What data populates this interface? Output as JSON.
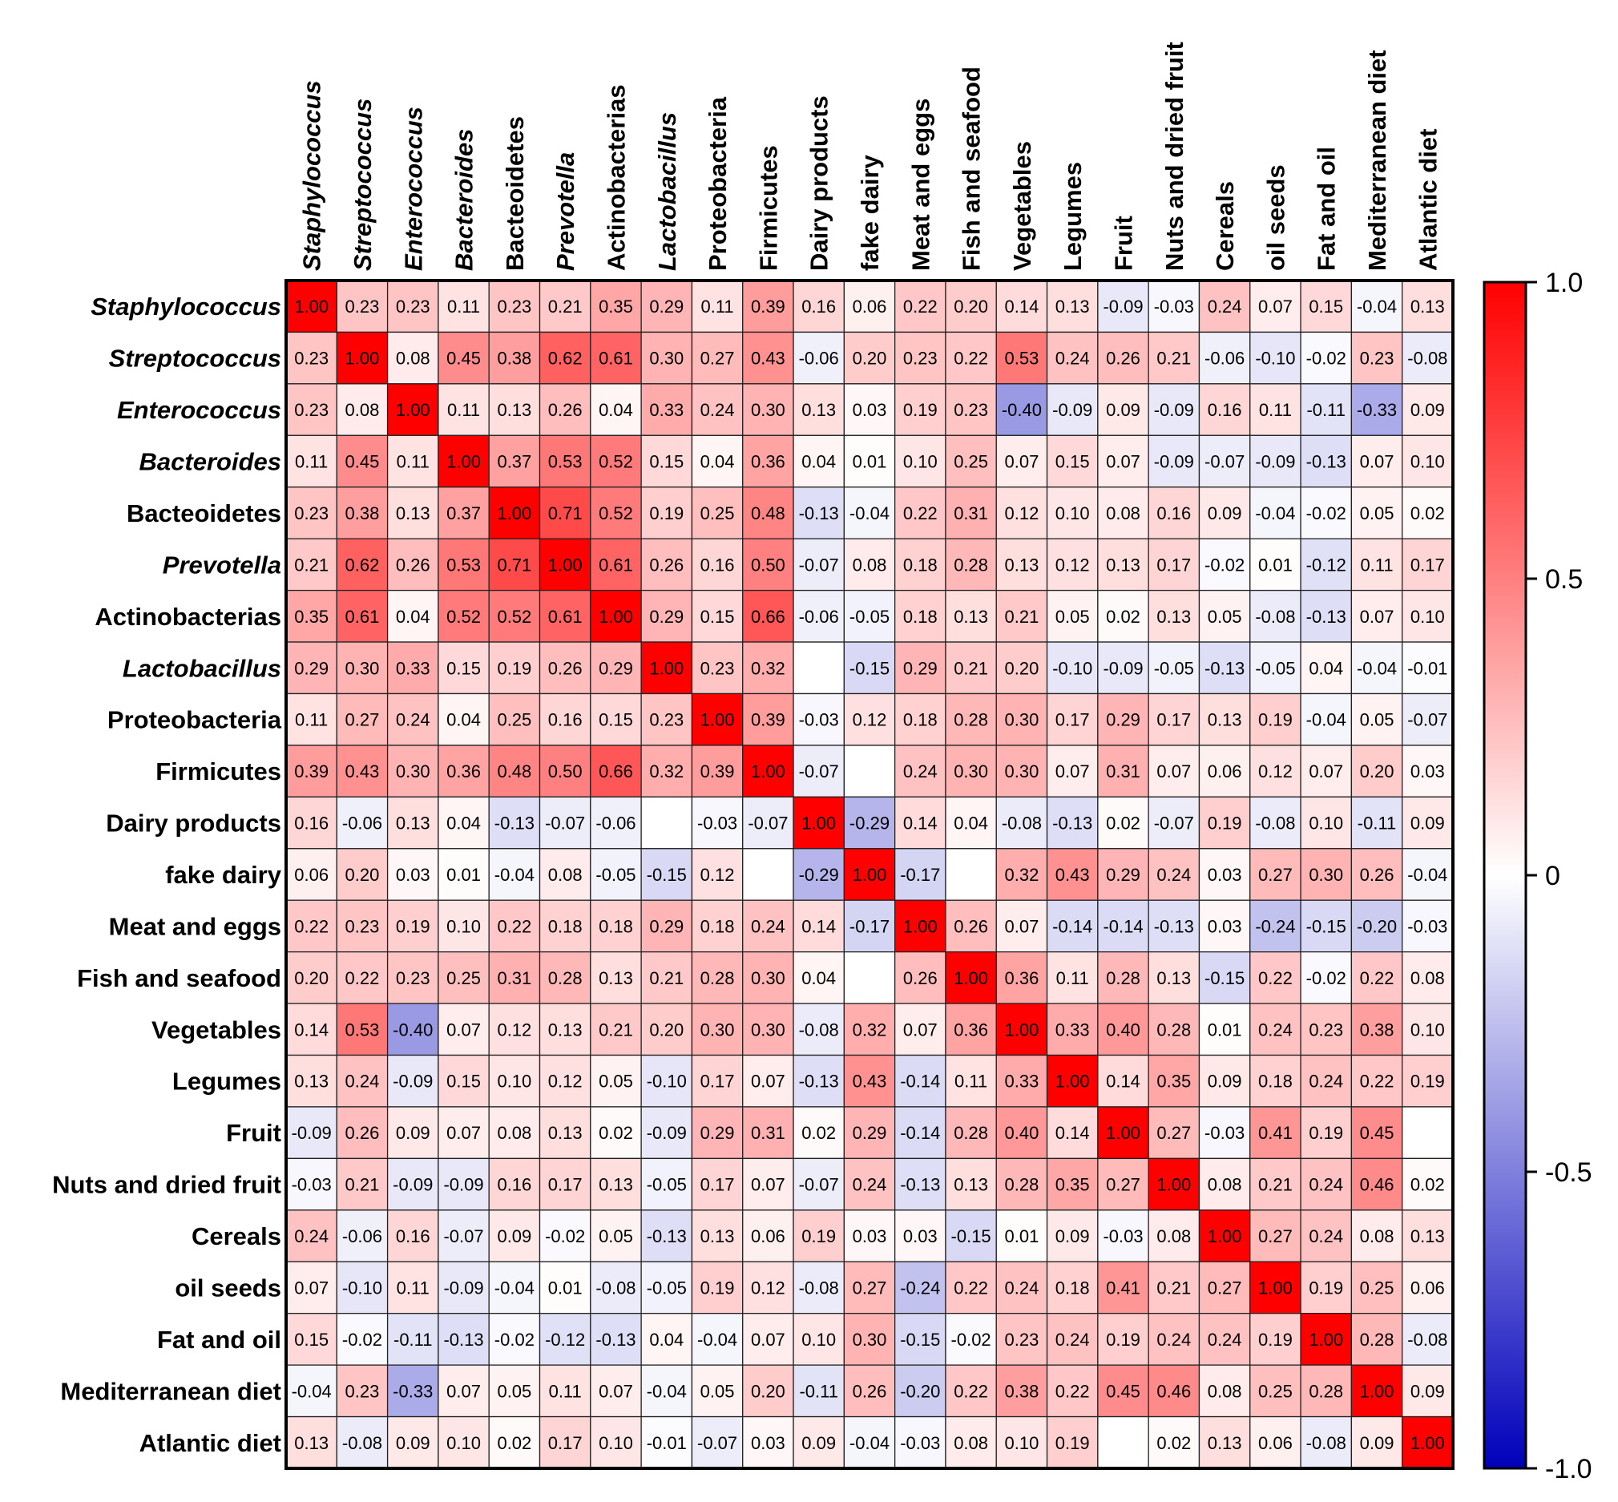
{
  "chart_data": {
    "type": "heatmap",
    "title": "",
    "labels": [
      {
        "text": "Staphylococcus",
        "italic": true
      },
      {
        "text": "Streptococcus",
        "italic": true
      },
      {
        "text": "Enterococcus",
        "italic": true
      },
      {
        "text": "Bacteroides",
        "italic": true
      },
      {
        "text": "Bacteoidetes",
        "italic": false
      },
      {
        "text": "Prevotella",
        "italic": true
      },
      {
        "text": "Actinobacterias",
        "italic": false
      },
      {
        "text": "Lactobacillus",
        "italic": true
      },
      {
        "text": "Proteobacteria",
        "italic": false
      },
      {
        "text": "Firmicutes",
        "italic": false
      },
      {
        "text": "Dairy products",
        "italic": false
      },
      {
        "text": "fake dairy",
        "italic": false
      },
      {
        "text": "Meat and eggs",
        "italic": false
      },
      {
        "text": "Fish and seafood",
        "italic": false
      },
      {
        "text": "Vegetables",
        "italic": false
      },
      {
        "text": "Legumes",
        "italic": false
      },
      {
        "text": "Fruit",
        "italic": false
      },
      {
        "text": "Nuts and dried fruit",
        "italic": false
      },
      {
        "text": "Cereals",
        "italic": false
      },
      {
        "text": "oil seeds",
        "italic": false
      },
      {
        "text": "Fat and oil",
        "italic": false
      },
      {
        "text": "Mediterranean diet",
        "italic": false
      },
      {
        "text": "Atlantic diet",
        "italic": false
      }
    ],
    "matrix": [
      [
        "1.00",
        "0.23",
        "0.23",
        "0.11",
        "0.23",
        "0.21",
        "0.35",
        "0.29",
        "0.11",
        "0.39",
        "0.16",
        "0.06",
        "0.22",
        "0.20",
        "0.14",
        "0.13",
        "-0.09",
        "-0.03",
        "0.24",
        "0.07",
        "0.15",
        "-0.04",
        "0.13"
      ],
      [
        "0.23",
        "1.00",
        "0.08",
        "0.45",
        "0.38",
        "0.62",
        "0.61",
        "0.30",
        "0.27",
        "0.43",
        "-0.06",
        "0.20",
        "0.23",
        "0.22",
        "0.53",
        "0.24",
        "0.26",
        "0.21",
        "-0.06",
        "-0.10",
        "-0.02",
        "0.23",
        "-0.08"
      ],
      [
        "0.23",
        "0.08",
        "1.00",
        "0.11",
        "0.13",
        "0.26",
        "0.04",
        "0.33",
        "0.24",
        "0.30",
        "0.13",
        "0.03",
        "0.19",
        "0.23",
        "-0.40",
        "-0.09",
        "0.09",
        "-0.09",
        "0.16",
        "0.11",
        "-0.11",
        "-0.33",
        "0.09"
      ],
      [
        "0.11",
        "0.45",
        "0.11",
        "1.00",
        "0.37",
        "0.53",
        "0.52",
        "0.15",
        "0.04",
        "0.36",
        "0.04",
        "0.01",
        "0.10",
        "0.25",
        "0.07",
        "0.15",
        "0.07",
        "-0.09",
        "-0.07",
        "-0.09",
        "-0.13",
        "0.07",
        "0.10"
      ],
      [
        "0.23",
        "0.38",
        "0.13",
        "0.37",
        "1.00",
        "0.71",
        "0.52",
        "0.19",
        "0.25",
        "0.48",
        "-0.13",
        "-0.04",
        "0.22",
        "0.31",
        "0.12",
        "0.10",
        "0.08",
        "0.16",
        "0.09",
        "-0.04",
        "-0.02",
        "0.05",
        "0.02"
      ],
      [
        "0.21",
        "0.62",
        "0.26",
        "0.53",
        "0.71",
        "1.00",
        "0.61",
        "0.26",
        "0.16",
        "0.50",
        "-0.07",
        "0.08",
        "0.18",
        "0.28",
        "0.13",
        "0.12",
        "0.13",
        "0.17",
        "-0.02",
        "0.01",
        "-0.12",
        "0.11",
        "0.17"
      ],
      [
        "0.35",
        "0.61",
        "0.04",
        "0.52",
        "0.52",
        "0.61",
        "1.00",
        "0.29",
        "0.15",
        "0.66",
        "-0.06",
        "-0.05",
        "0.18",
        "0.13",
        "0.21",
        "0.05",
        "0.02",
        "0.13",
        "0.05",
        "-0.08",
        "-0.13",
        "0.07",
        "0.10"
      ],
      [
        "0.29",
        "0.30",
        "0.33",
        "0.15",
        "0.19",
        "0.26",
        "0.29",
        "1.00",
        "0.23",
        "0.32",
        "",
        "-0.15",
        "0.29",
        "0.21",
        "0.20",
        "-0.10",
        "-0.09",
        "-0.05",
        "-0.13",
        "-0.05",
        "0.04",
        "-0.04",
        "-0.01"
      ],
      [
        "0.11",
        "0.27",
        "0.24",
        "0.04",
        "0.25",
        "0.16",
        "0.15",
        "0.23",
        "1.00",
        "0.39",
        "-0.03",
        "0.12",
        "0.18",
        "0.28",
        "0.30",
        "0.17",
        "0.29",
        "0.17",
        "0.13",
        "0.19",
        "-0.04",
        "0.05",
        "-0.07"
      ],
      [
        "0.39",
        "0.43",
        "0.30",
        "0.36",
        "0.48",
        "0.50",
        "0.66",
        "0.32",
        "0.39",
        "1.00",
        "-0.07",
        "",
        "0.24",
        "0.30",
        "0.30",
        "0.07",
        "0.31",
        "0.07",
        "0.06",
        "0.12",
        "0.07",
        "0.20",
        "0.03"
      ],
      [
        "0.16",
        "-0.06",
        "0.13",
        "0.04",
        "-0.13",
        "-0.07",
        "-0.06",
        "",
        "-0.03",
        "-0.07",
        "1.00",
        "-0.29",
        "0.14",
        "0.04",
        "-0.08",
        "-0.13",
        "0.02",
        "-0.07",
        "0.19",
        "-0.08",
        "0.10",
        "-0.11",
        "0.09"
      ],
      [
        "0.06",
        "0.20",
        "0.03",
        "0.01",
        "-0.04",
        "0.08",
        "-0.05",
        "-0.15",
        "0.12",
        "",
        "-0.29",
        "1.00",
        "-0.17",
        "",
        "0.32",
        "0.43",
        "0.29",
        "0.24",
        "0.03",
        "0.27",
        "0.30",
        "0.26",
        "-0.04"
      ],
      [
        "0.22",
        "0.23",
        "0.19",
        "0.10",
        "0.22",
        "0.18",
        "0.18",
        "0.29",
        "0.18",
        "0.24",
        "0.14",
        "-0.17",
        "1.00",
        "0.26",
        "0.07",
        "-0.14",
        "-0.14",
        "-0.13",
        "0.03",
        "-0.24",
        "-0.15",
        "-0.20",
        "-0.03"
      ],
      [
        "0.20",
        "0.22",
        "0.23",
        "0.25",
        "0.31",
        "0.28",
        "0.13",
        "0.21",
        "0.28",
        "0.30",
        "0.04",
        "",
        "0.26",
        "1.00",
        "0.36",
        "0.11",
        "0.28",
        "0.13",
        "-0.15",
        "0.22",
        "-0.02",
        "0.22",
        "0.08"
      ],
      [
        "0.14",
        "0.53",
        "-0.40",
        "0.07",
        "0.12",
        "0.13",
        "0.21",
        "0.20",
        "0.30",
        "0.30",
        "-0.08",
        "0.32",
        "0.07",
        "0.36",
        "1.00",
        "0.33",
        "0.40",
        "0.28",
        "0.01",
        "0.24",
        "0.23",
        "0.38",
        "0.10"
      ],
      [
        "0.13",
        "0.24",
        "-0.09",
        "0.15",
        "0.10",
        "0.12",
        "0.05",
        "-0.10",
        "0.17",
        "0.07",
        "-0.13",
        "0.43",
        "-0.14",
        "0.11",
        "0.33",
        "1.00",
        "0.14",
        "0.35",
        "0.09",
        "0.18",
        "0.24",
        "0.22",
        "0.19"
      ],
      [
        "-0.09",
        "0.26",
        "0.09",
        "0.07",
        "0.08",
        "0.13",
        "0.02",
        "-0.09",
        "0.29",
        "0.31",
        "0.02",
        "0.29",
        "-0.14",
        "0.28",
        "0.40",
        "0.14",
        "1.00",
        "0.27",
        "-0.03",
        "0.41",
        "0.19",
        "0.45",
        ""
      ],
      [
        "-0.03",
        "0.21",
        "-0.09",
        "-0.09",
        "0.16",
        "0.17",
        "0.13",
        "-0.05",
        "0.17",
        "0.07",
        "-0.07",
        "0.24",
        "-0.13",
        "0.13",
        "0.28",
        "0.35",
        "0.27",
        "1.00",
        "0.08",
        "0.21",
        "0.24",
        "0.46",
        "0.02"
      ],
      [
        "0.24",
        "-0.06",
        "0.16",
        "-0.07",
        "0.09",
        "-0.02",
        "0.05",
        "-0.13",
        "0.13",
        "0.06",
        "0.19",
        "0.03",
        "0.03",
        "-0.15",
        "0.01",
        "0.09",
        "-0.03",
        "0.08",
        "1.00",
        "0.27",
        "0.24",
        "0.08",
        "0.13"
      ],
      [
        "0.07",
        "-0.10",
        "0.11",
        "-0.09",
        "-0.04",
        "0.01",
        "-0.08",
        "-0.05",
        "0.19",
        "0.12",
        "-0.08",
        "0.27",
        "-0.24",
        "0.22",
        "0.24",
        "0.18",
        "0.41",
        "0.21",
        "0.27",
        "1.00",
        "0.19",
        "0.25",
        "0.06"
      ],
      [
        "0.15",
        "-0.02",
        "-0.11",
        "-0.13",
        "-0.02",
        "-0.12",
        "-0.13",
        "0.04",
        "-0.04",
        "0.07",
        "0.10",
        "0.30",
        "-0.15",
        "-0.02",
        "0.23",
        "0.24",
        "0.19",
        "0.24",
        "0.24",
        "0.19",
        "1.00",
        "0.28",
        "-0.08"
      ],
      [
        "-0.04",
        "0.23",
        "-0.33",
        "0.07",
        "0.05",
        "0.11",
        "0.07",
        "-0.04",
        "0.05",
        "0.20",
        "-0.11",
        "0.26",
        "-0.20",
        "0.22",
        "0.38",
        "0.22",
        "0.45",
        "0.46",
        "0.08",
        "0.25",
        "0.28",
        "1.00",
        "0.09"
      ],
      [
        "0.13",
        "-0.08",
        "0.09",
        "0.10",
        "0.02",
        "0.17",
        "0.10",
        "-0.01",
        "-0.07",
        "0.03",
        "0.09",
        "-0.04",
        "-0.03",
        "0.08",
        "0.10",
        "0.19",
        "",
        "0.02",
        "0.13",
        "0.06",
        "-0.08",
        "0.09",
        "1.00"
      ]
    ],
    "colorbar": {
      "range": [
        -1.0,
        1.0
      ],
      "ticks": [
        {
          "value": 1.0,
          "label": "1.0"
        },
        {
          "value": 0.5,
          "label": "0.5"
        },
        {
          "value": 0,
          "label": "0"
        },
        {
          "value": -0.5,
          "label": "-0.5"
        },
        {
          "value": -1.0,
          "label": "-1.0"
        }
      ],
      "high_color": "#ff0000",
      "mid_color": "#ffffff",
      "low_color": "#0000bb"
    },
    "grid": true
  }
}
